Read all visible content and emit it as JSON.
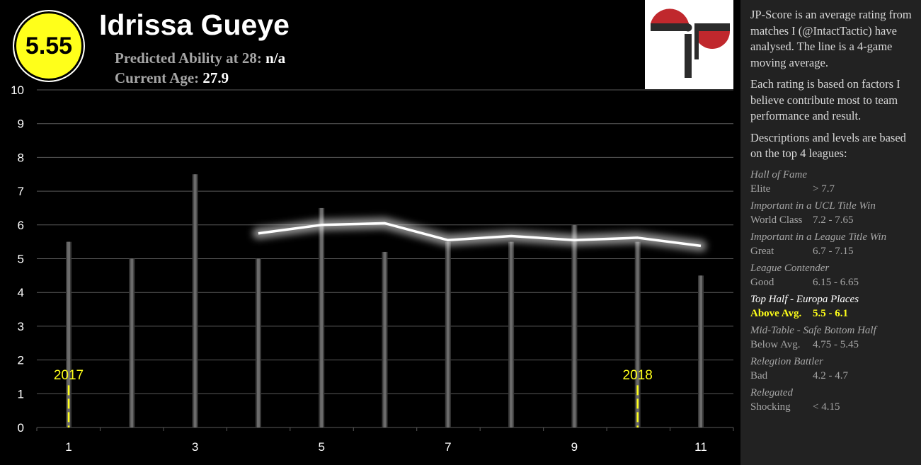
{
  "header": {
    "score": "5.55",
    "name": "Idrissa Gueye",
    "ability_label": "Predicted Ability at 28:",
    "ability_value": "n/a",
    "age_label": "Current Age:",
    "age_value": "27.9"
  },
  "sidebar": {
    "para1": "JP-Score is an average rating from matches I (@IntactTactic) have analysed. The line is a 4-game moving average.",
    "para2": "Each rating is based on factors I believe contribute most to team performance and result.",
    "para3": "Descriptions and levels are based on the top 4 leagues:",
    "levels": [
      {
        "title": "Hall of Fame",
        "name": "Elite",
        "range": "> 7.7"
      },
      {
        "title": "Important in a UCL Title Win",
        "name": "World Class",
        "range": "7.2 - 7.65"
      },
      {
        "title": "Important in a League Title Win",
        "name": "Great",
        "range": "6.7 - 7.15"
      },
      {
        "title": "League Contender",
        "name": "Good",
        "range": "6.15 - 6.65"
      },
      {
        "title": "Top Half - Europa Places",
        "name": "Above Avg.",
        "range": "5.5 - 6.1"
      },
      {
        "title": "Mid-Table - Safe Bottom Half",
        "name": "Below Avg.",
        "range": "4.75 - 5.45"
      },
      {
        "title": "Relegtion Battler",
        "name": "Bad",
        "range": "4.2 - 4.7"
      },
      {
        "title": "Relegated",
        "name": "Shocking",
        "range": "< 4.15"
      }
    ]
  },
  "chart_data": {
    "type": "bar",
    "x": [
      1,
      2,
      3,
      4,
      5,
      6,
      7,
      8,
      9,
      10,
      11
    ],
    "x_tick_labels": [
      "1",
      "3",
      "5",
      "7",
      "9",
      "11"
    ],
    "values": [
      5.5,
      5.0,
      7.5,
      5.0,
      6.5,
      5.2,
      5.5,
      5.5,
      6.0,
      5.5,
      4.5
    ],
    "moving_average": {
      "x": [
        4,
        5,
        6,
        7,
        8,
        9,
        10,
        11
      ],
      "values": [
        5.75,
        6.0,
        6.05,
        5.55,
        5.67,
        5.55,
        5.62,
        5.38
      ]
    },
    "ylim": [
      0,
      10
    ],
    "y_ticks": [
      "0",
      "1",
      "2",
      "3",
      "4",
      "5",
      "6",
      "7",
      "8",
      "9",
      "10"
    ],
    "grid": true,
    "year_markers": [
      {
        "x": 1,
        "label": "2017"
      },
      {
        "x": 10,
        "label": "2018"
      }
    ],
    "colors": {
      "bar": "#6b6b6b",
      "line": "#ffffff",
      "marker": "#ffff1a",
      "grid": "#5a5a5a"
    }
  }
}
